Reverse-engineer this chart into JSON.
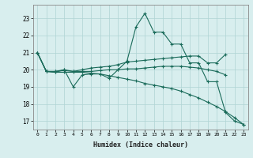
{
  "xlabel": "Humidex (Indice chaleur)",
  "x_values": [
    0,
    1,
    2,
    3,
    4,
    5,
    6,
    7,
    8,
    9,
    10,
    11,
    12,
    13,
    14,
    15,
    16,
    17,
    18,
    19,
    20,
    21,
    22,
    23
  ],
  "line1": [
    21.0,
    19.9,
    19.85,
    20.0,
    19.0,
    19.7,
    19.75,
    19.75,
    19.5,
    20.0,
    20.5,
    22.5,
    23.3,
    22.2,
    22.2,
    21.5,
    21.5,
    20.4,
    20.4,
    19.3,
    19.3,
    17.5,
    17.0,
    16.8
  ],
  "line2": [
    21.0,
    19.9,
    19.9,
    20.0,
    19.9,
    20.0,
    20.1,
    20.15,
    20.2,
    20.3,
    20.45,
    20.5,
    20.55,
    20.6,
    20.65,
    20.7,
    20.75,
    20.8,
    20.8,
    20.4,
    20.4,
    20.9,
    null,
    null
  ],
  "line3": [
    21.0,
    19.9,
    19.9,
    19.95,
    19.9,
    19.9,
    19.9,
    19.95,
    20.0,
    20.0,
    20.05,
    20.05,
    20.1,
    20.15,
    20.2,
    20.2,
    20.2,
    20.15,
    20.1,
    20.0,
    19.9,
    19.7,
    null,
    null
  ],
  "line4": [
    21.0,
    19.9,
    19.85,
    19.85,
    19.85,
    19.85,
    19.8,
    19.75,
    19.65,
    19.55,
    19.45,
    19.35,
    19.2,
    19.1,
    19.0,
    18.9,
    18.75,
    18.55,
    18.35,
    18.1,
    17.85,
    17.55,
    17.2,
    16.8
  ],
  "ylim": [
    16.5,
    23.8
  ],
  "yticks": [
    17,
    18,
    19,
    20,
    21,
    22,
    23
  ],
  "line_color": "#1a6b5a",
  "bg_color": "#d8eeee",
  "grid_color": "#afd4d4"
}
